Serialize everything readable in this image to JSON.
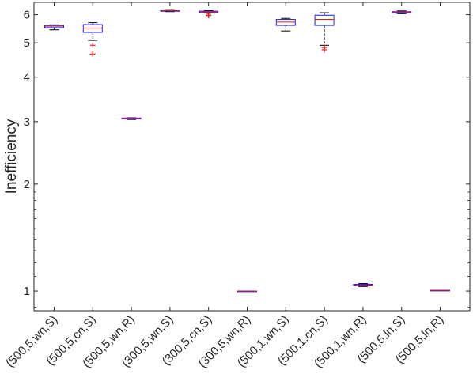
{
  "chart_data": {
    "type": "box",
    "title": "",
    "xlabel": "",
    "ylabel": "Inefficiency",
    "yscale": "log",
    "ylim": [
      0.88,
      6.5
    ],
    "yticks": [
      1,
      2,
      3,
      4,
      5,
      6
    ],
    "ytick_labels": [
      "1",
      "2",
      "3",
      "4",
      "5",
      "6"
    ],
    "grid": false,
    "categories": [
      "(500,5,wn,S)",
      "(500,5,cn,S)",
      "(500,5,wn,R)",
      "(300,5,wn,S)",
      "(300,5,cn,S)",
      "(300,5,wn,R)",
      "(500,1,wn,S)",
      "(500,1,cn,S)",
      "(500,1,wn,R)",
      "(500,5,ln,S)",
      "(500,5,ln,R)"
    ],
    "boxes": [
      {
        "whisker_low": 5.44,
        "q1": 5.52,
        "median": 5.57,
        "q3": 5.6,
        "whisker_high": 5.62,
        "outliers": []
      },
      {
        "whisker_low": 5.08,
        "q1": 5.35,
        "median": 5.5,
        "q3": 5.63,
        "whisker_high": 5.7,
        "outliers": [
          4.92,
          4.65
        ]
      },
      {
        "whisker_low": 3.04,
        "q1": 3.05,
        "median": 3.06,
        "q3": 3.07,
        "whisker_high": 3.075,
        "outliers": []
      },
      {
        "whisker_low": 6.12,
        "q1": 6.14,
        "median": 6.15,
        "q3": 6.16,
        "whisker_high": 6.17,
        "outliers": []
      },
      {
        "whisker_low": 6.07,
        "q1": 6.1,
        "median": 6.12,
        "q3": 6.14,
        "whisker_high": 6.16,
        "outliers": [
          6.02,
          5.97
        ]
      },
      {
        "whisker_low": 1.0,
        "q1": 1.0,
        "median": 1.0,
        "q3": 1.0,
        "whisker_high": 1.0,
        "outliers": []
      },
      {
        "whisker_low": 5.4,
        "q1": 5.6,
        "median": 5.72,
        "q3": 5.82,
        "whisker_high": 5.86,
        "outliers": []
      },
      {
        "whisker_low": 4.92,
        "q1": 5.6,
        "median": 5.82,
        "q3": 5.98,
        "whisker_high": 6.08,
        "outliers": [
          4.85,
          4.78
        ]
      },
      {
        "whisker_low": 1.03,
        "q1": 1.035,
        "median": 1.04,
        "q3": 1.045,
        "whisker_high": 1.05,
        "outliers": []
      },
      {
        "whisker_low": 6.04,
        "q1": 6.08,
        "median": 6.1,
        "q3": 6.12,
        "whisker_high": 6.15,
        "outliers": []
      },
      {
        "whisker_low": 1.005,
        "q1": 1.005,
        "median": 1.005,
        "q3": 1.005,
        "whisker_high": 1.005,
        "outliers": []
      }
    ],
    "colors": {
      "box": "#1f1ff0",
      "median": "#e31a1c",
      "whisker": "#000000",
      "outlier": "#e31a1c",
      "axis": "#262626"
    }
  }
}
